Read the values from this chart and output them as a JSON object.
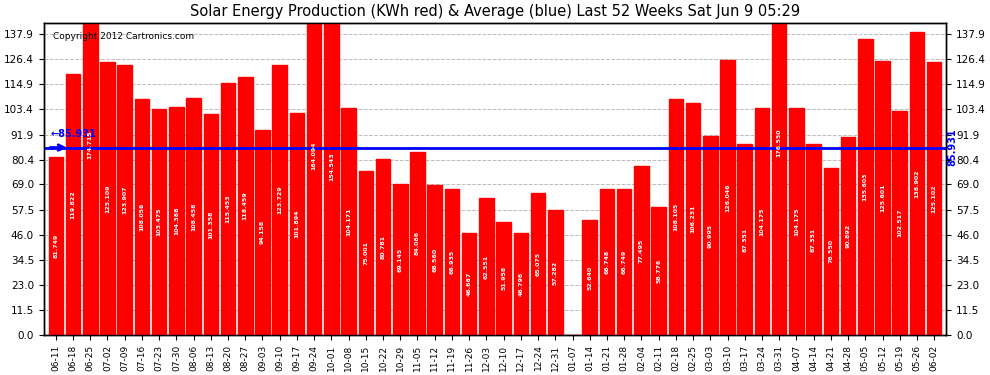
{
  "title": "Solar Energy Production (KWh red) & Average (blue) Last 52 Weeks Sat Jun 9 05:29",
  "copyright": "Copyright 2012 Cartronics.com",
  "average_line": 85.931,
  "bar_color": "#FF0000",
  "average_color": "#0000FF",
  "background_color": "#FFFFFF",
  "grid_color": "#AAAAAA",
  "ylim": [
    0,
    143
  ],
  "yticks": [
    0.0,
    11.5,
    23.0,
    34.5,
    46.0,
    57.5,
    69.0,
    80.4,
    91.9,
    103.4,
    114.9,
    126.4,
    137.9
  ],
  "categories": [
    "06-11",
    "06-18",
    "06-25",
    "07-02",
    "07-09",
    "07-16",
    "07-23",
    "07-30",
    "08-06",
    "08-13",
    "08-20",
    "08-27",
    "09-03",
    "09-10",
    "09-17",
    "09-24",
    "10-01",
    "10-08",
    "10-15",
    "10-22",
    "10-29",
    "11-05",
    "11-12",
    "11-19",
    "11-26",
    "12-03",
    "12-10",
    "12-17",
    "12-24",
    "12-31",
    "01-07",
    "01-14",
    "01-21",
    "01-28",
    "02-04",
    "02-11",
    "02-18",
    "02-25",
    "03-03",
    "03-10",
    "03-17",
    "03-24",
    "03-31",
    "04-07",
    "04-14",
    "04-21",
    "04-28",
    "05-05",
    "05-12",
    "05-19",
    "05-26",
    "06-02"
  ],
  "values": [
    81.749,
    119.822,
    174.715,
    125.109,
    123.907,
    108.056,
    103.475,
    104.388,
    108.458,
    101.358,
    115.453,
    118.459,
    94.158,
    123.729,
    101.894,
    164.094,
    154.543,
    104.171,
    75.001,
    80.781,
    69.145,
    84.086,
    68.56,
    66.935,
    46.667,
    62.551,
    51.958,
    46.796,
    65.075,
    57.282,
    0.022,
    52.64,
    66.748,
    66.749,
    77.495,
    58.776,
    108.105,
    106.231,
    90.995,
    126.046,
    87.351,
    104.175,
    176.55,
    104.175,
    87.351,
    76.55,
    90.892,
    135.603,
    125.601,
    102.517,
    138.902,
    125.102
  ]
}
